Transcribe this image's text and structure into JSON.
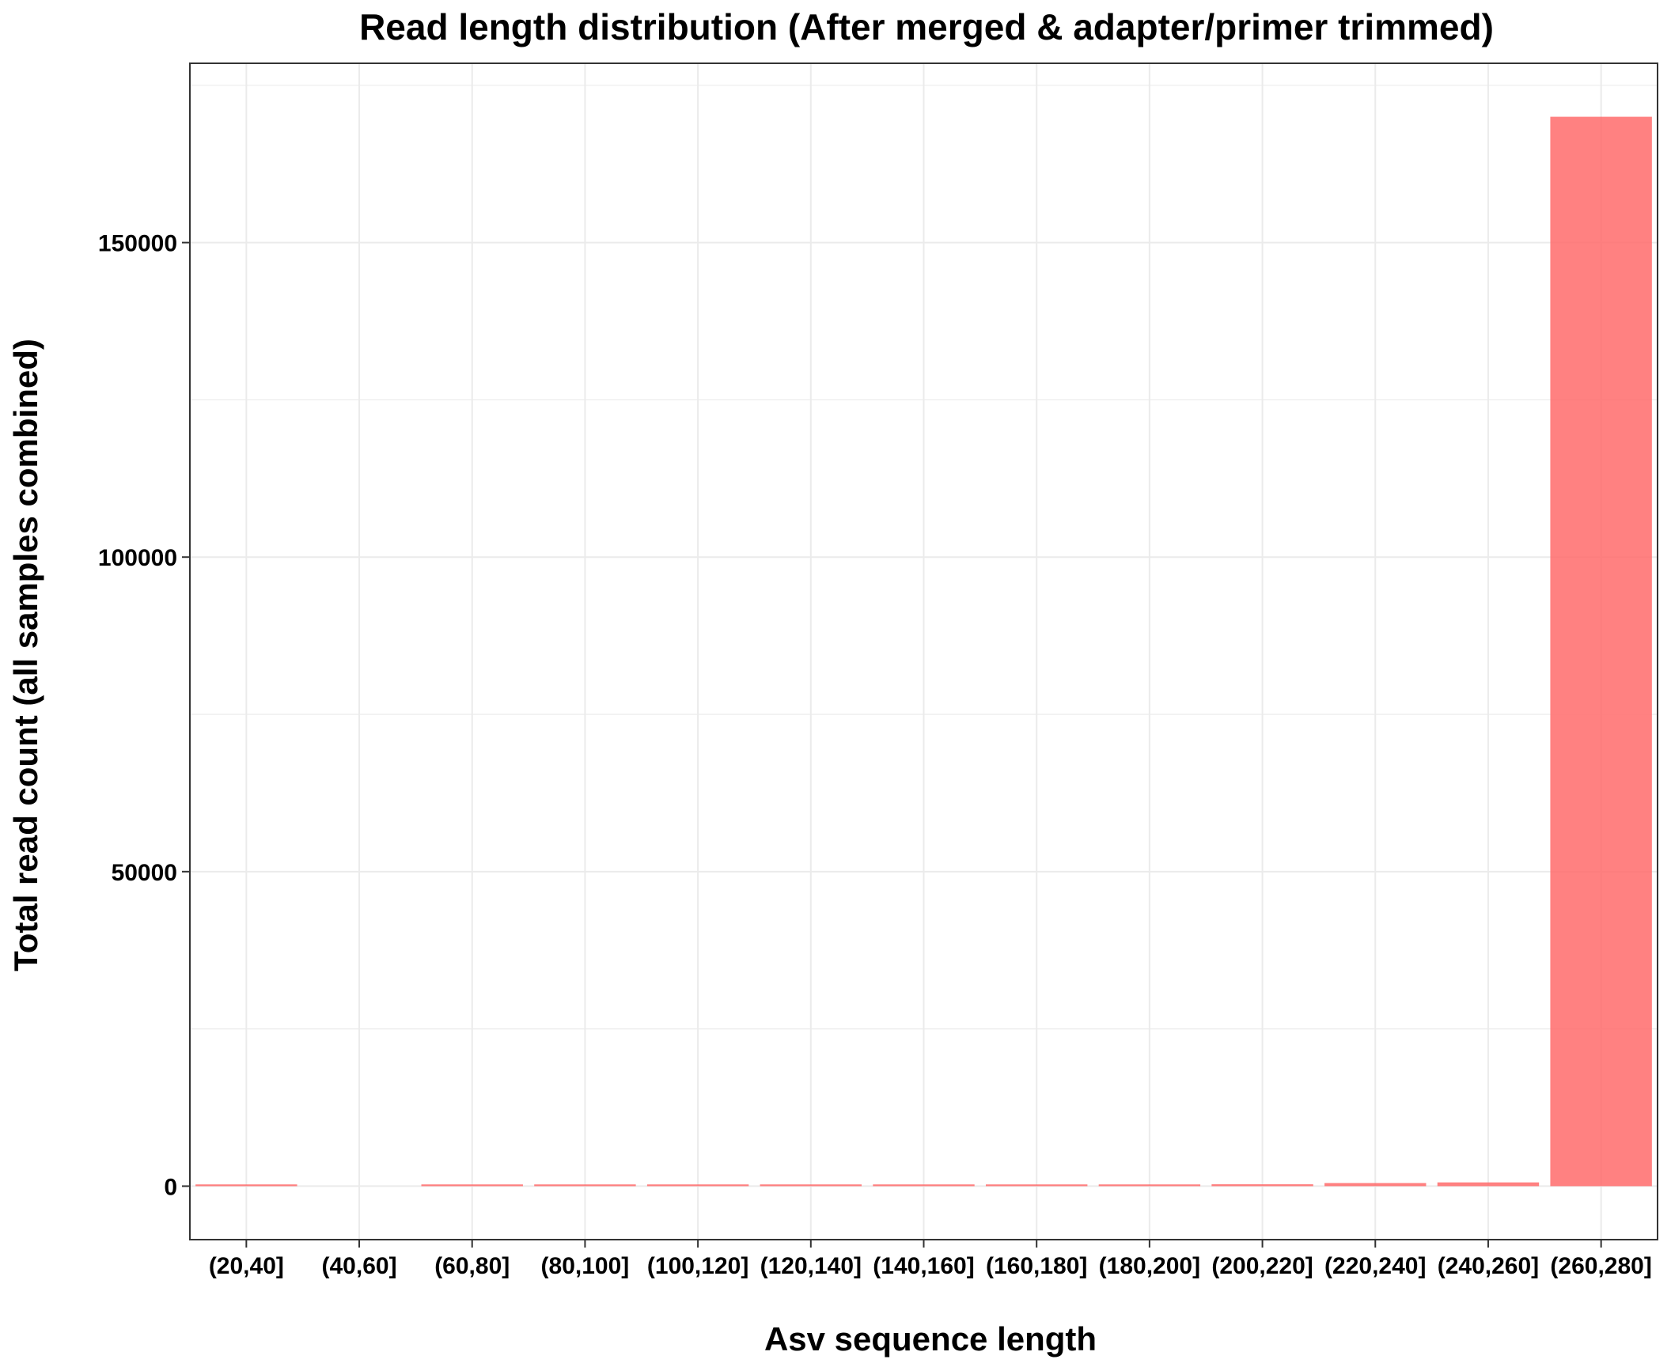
{
  "chart_data": {
    "type": "bar",
    "title": "Read length distribution (After merged & adapter/primer trimmed)",
    "xlabel": "Asv sequence length",
    "ylabel": "Total read count (all samples combined)",
    "categories": [
      "(20,40]",
      "(40,60]",
      "(60,80]",
      "(80,100]",
      "(100,120]",
      "(120,140]",
      "(140,160]",
      "(160,180]",
      "(180,200]",
      "(200,220]",
      "(220,240]",
      "(240,260]",
      "(260,280]"
    ],
    "values": [
      60,
      0,
      100,
      80,
      120,
      250,
      200,
      60,
      100,
      300,
      500,
      600,
      170000
    ],
    "ylim": [
      -8500,
      178500
    ],
    "yticks": [
      0,
      50000,
      100000,
      150000
    ],
    "ytick_labels": [
      "0",
      "50000",
      "100000",
      "150000"
    ],
    "grid": true,
    "legend": "none",
    "bar_color": "#ff6b6b",
    "bar_opacity": 0.85
  }
}
